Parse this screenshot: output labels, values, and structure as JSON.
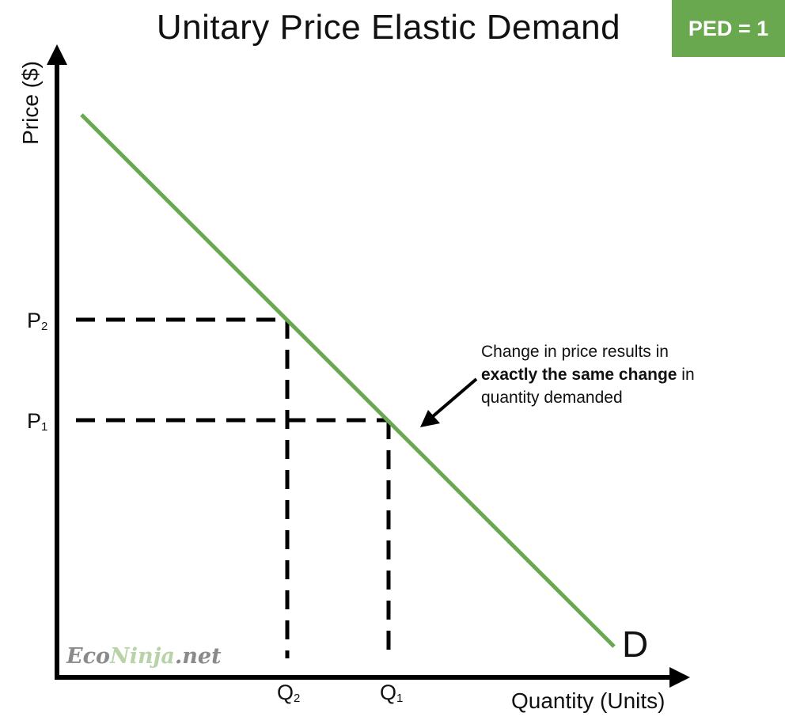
{
  "title": "Unitary Price Elastic Demand",
  "badge": "PED = 1",
  "axes": {
    "y_label": "Price ($)",
    "x_label": "Quantity (Units)"
  },
  "ticks": {
    "p2": {
      "main": "P",
      "sub": "2"
    },
    "p1": {
      "main": "P",
      "sub": "1"
    },
    "q2": {
      "main": "Q",
      "sub": "2"
    },
    "q1": {
      "main": "Q",
      "sub": "1"
    }
  },
  "curve_label": "D",
  "annotation": {
    "line1": "Change in price results in",
    "bold": "exactly the same change",
    "after_bold": " in",
    "line3": "quantity demanded"
  },
  "watermark": {
    "eco": "Eco",
    "ninja": "Ninja",
    "net": ".net"
  },
  "colors": {
    "accent": "#6aa84f",
    "demand_line": "#6aa84f",
    "axes": "#000000"
  }
}
